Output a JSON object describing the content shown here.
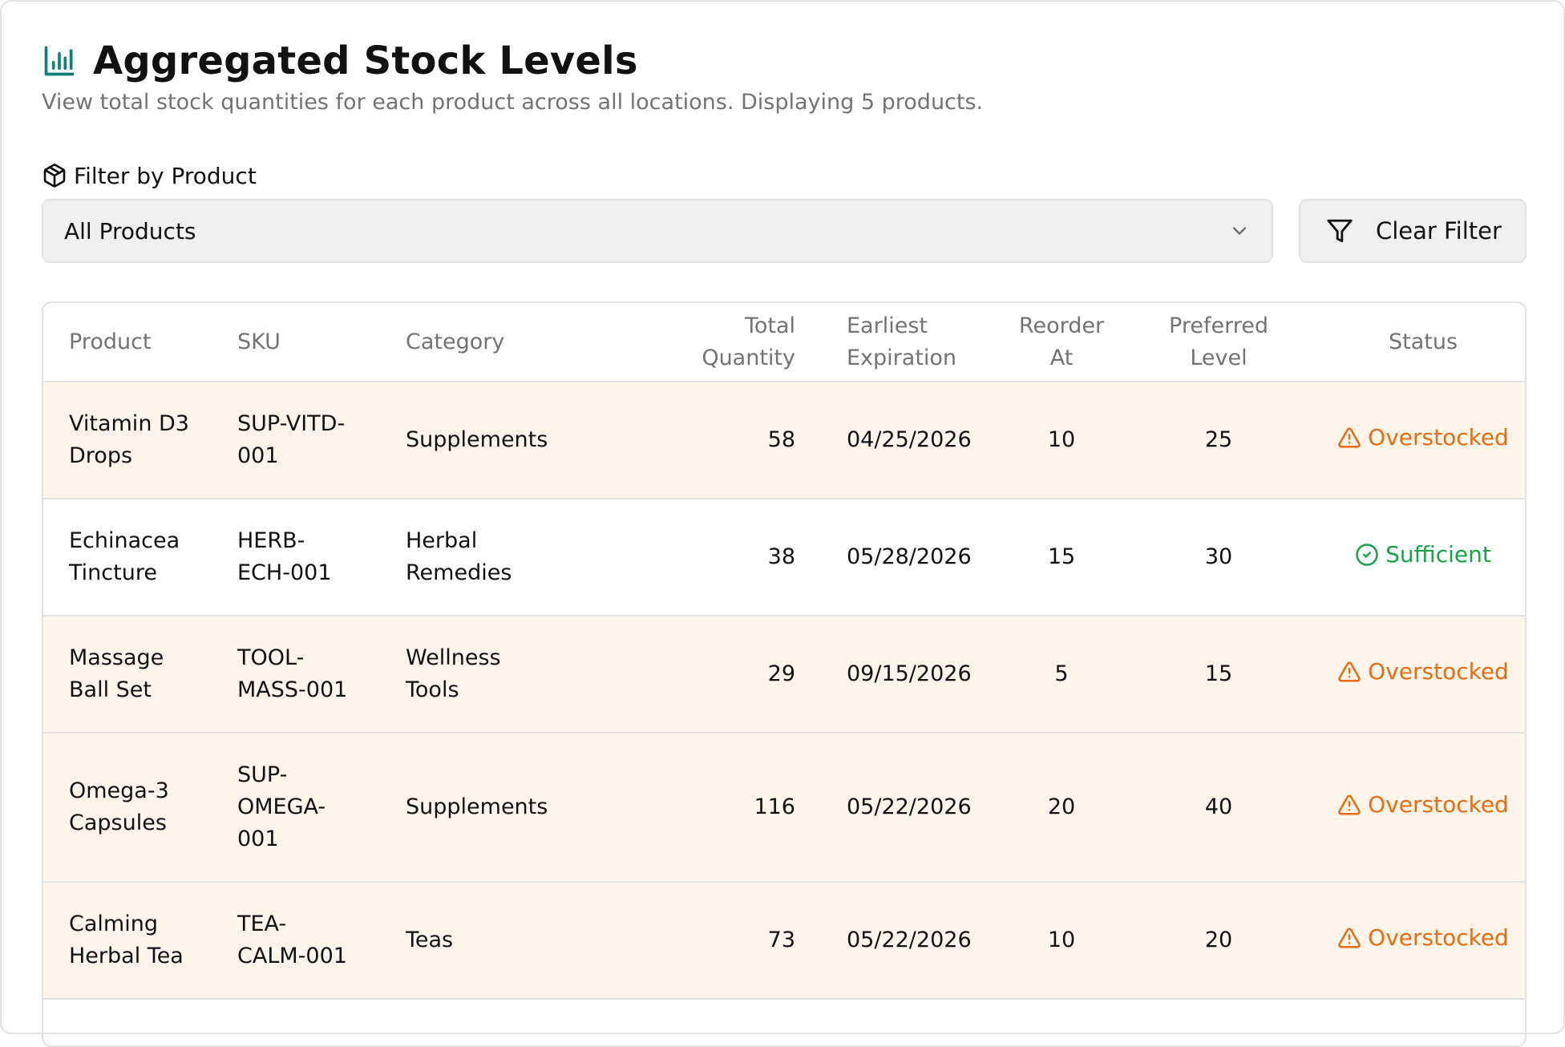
{
  "header": {
    "icon": "bar-chart-icon",
    "title": "Aggregated Stock Levels",
    "subtitle": "View total stock quantities for each product across all locations. Displaying 5 products."
  },
  "filter": {
    "label_icon": "package-icon",
    "label": "Filter by Product",
    "selected_value": "All Products",
    "clear_icon": "filter-icon",
    "clear_label": "Clear Filter"
  },
  "colors": {
    "accent": "#0f7f7a",
    "overstocked": "#ea6c0e",
    "sufficient": "#16a34a",
    "highlight_row": "#fff5eb"
  },
  "table": {
    "columns": {
      "product": "Product",
      "sku": "SKU",
      "category": "Category",
      "total_quantity": [
        "Total",
        "Quantity"
      ],
      "earliest_expiration": [
        "Earliest",
        "Expiration"
      ],
      "reorder_at": [
        "Reorder",
        "At"
      ],
      "preferred_level": [
        "Preferred",
        "Level"
      ],
      "status": "Status"
    },
    "rows": [
      {
        "product": [
          "Vitamin D3",
          "Drops"
        ],
        "sku": [
          "SUP-VITD-",
          "001"
        ],
        "category": [
          "Supplements"
        ],
        "total_quantity": "58",
        "earliest_expiration": "04/25/2026",
        "reorder_at": "10",
        "preferred_level": "25",
        "status": "Overstocked",
        "status_icon": "warning-triangle-icon"
      },
      {
        "product": [
          "Echinacea",
          "Tincture"
        ],
        "sku": [
          "HERB-",
          "ECH-001"
        ],
        "category": [
          "Herbal",
          "Remedies"
        ],
        "total_quantity": "38",
        "earliest_expiration": "05/28/2026",
        "reorder_at": "15",
        "preferred_level": "30",
        "status": "Sufficient",
        "status_icon": "check-circle-icon"
      },
      {
        "product": [
          "Massage",
          "Ball Set"
        ],
        "sku": [
          "TOOL-",
          "MASS-001"
        ],
        "category": [
          "Wellness",
          "Tools"
        ],
        "total_quantity": "29",
        "earliest_expiration": "09/15/2026",
        "reorder_at": "5",
        "preferred_level": "15",
        "status": "Overstocked",
        "status_icon": "warning-triangle-icon"
      },
      {
        "product": [
          "Omega-3",
          "Capsules"
        ],
        "sku": [
          "SUP-",
          "OMEGA-",
          "001"
        ],
        "category": [
          "Supplements"
        ],
        "total_quantity": "116",
        "earliest_expiration": "05/22/2026",
        "reorder_at": "20",
        "preferred_level": "40",
        "status": "Overstocked",
        "status_icon": "warning-triangle-icon"
      },
      {
        "product": [
          "Calming",
          "Herbal Tea"
        ],
        "sku": [
          "TEA-",
          "CALM-001"
        ],
        "category": [
          "Teas"
        ],
        "total_quantity": "73",
        "earliest_expiration": "05/22/2026",
        "reorder_at": "10",
        "preferred_level": "20",
        "status": "Overstocked",
        "status_icon": "warning-triangle-icon"
      }
    ]
  }
}
